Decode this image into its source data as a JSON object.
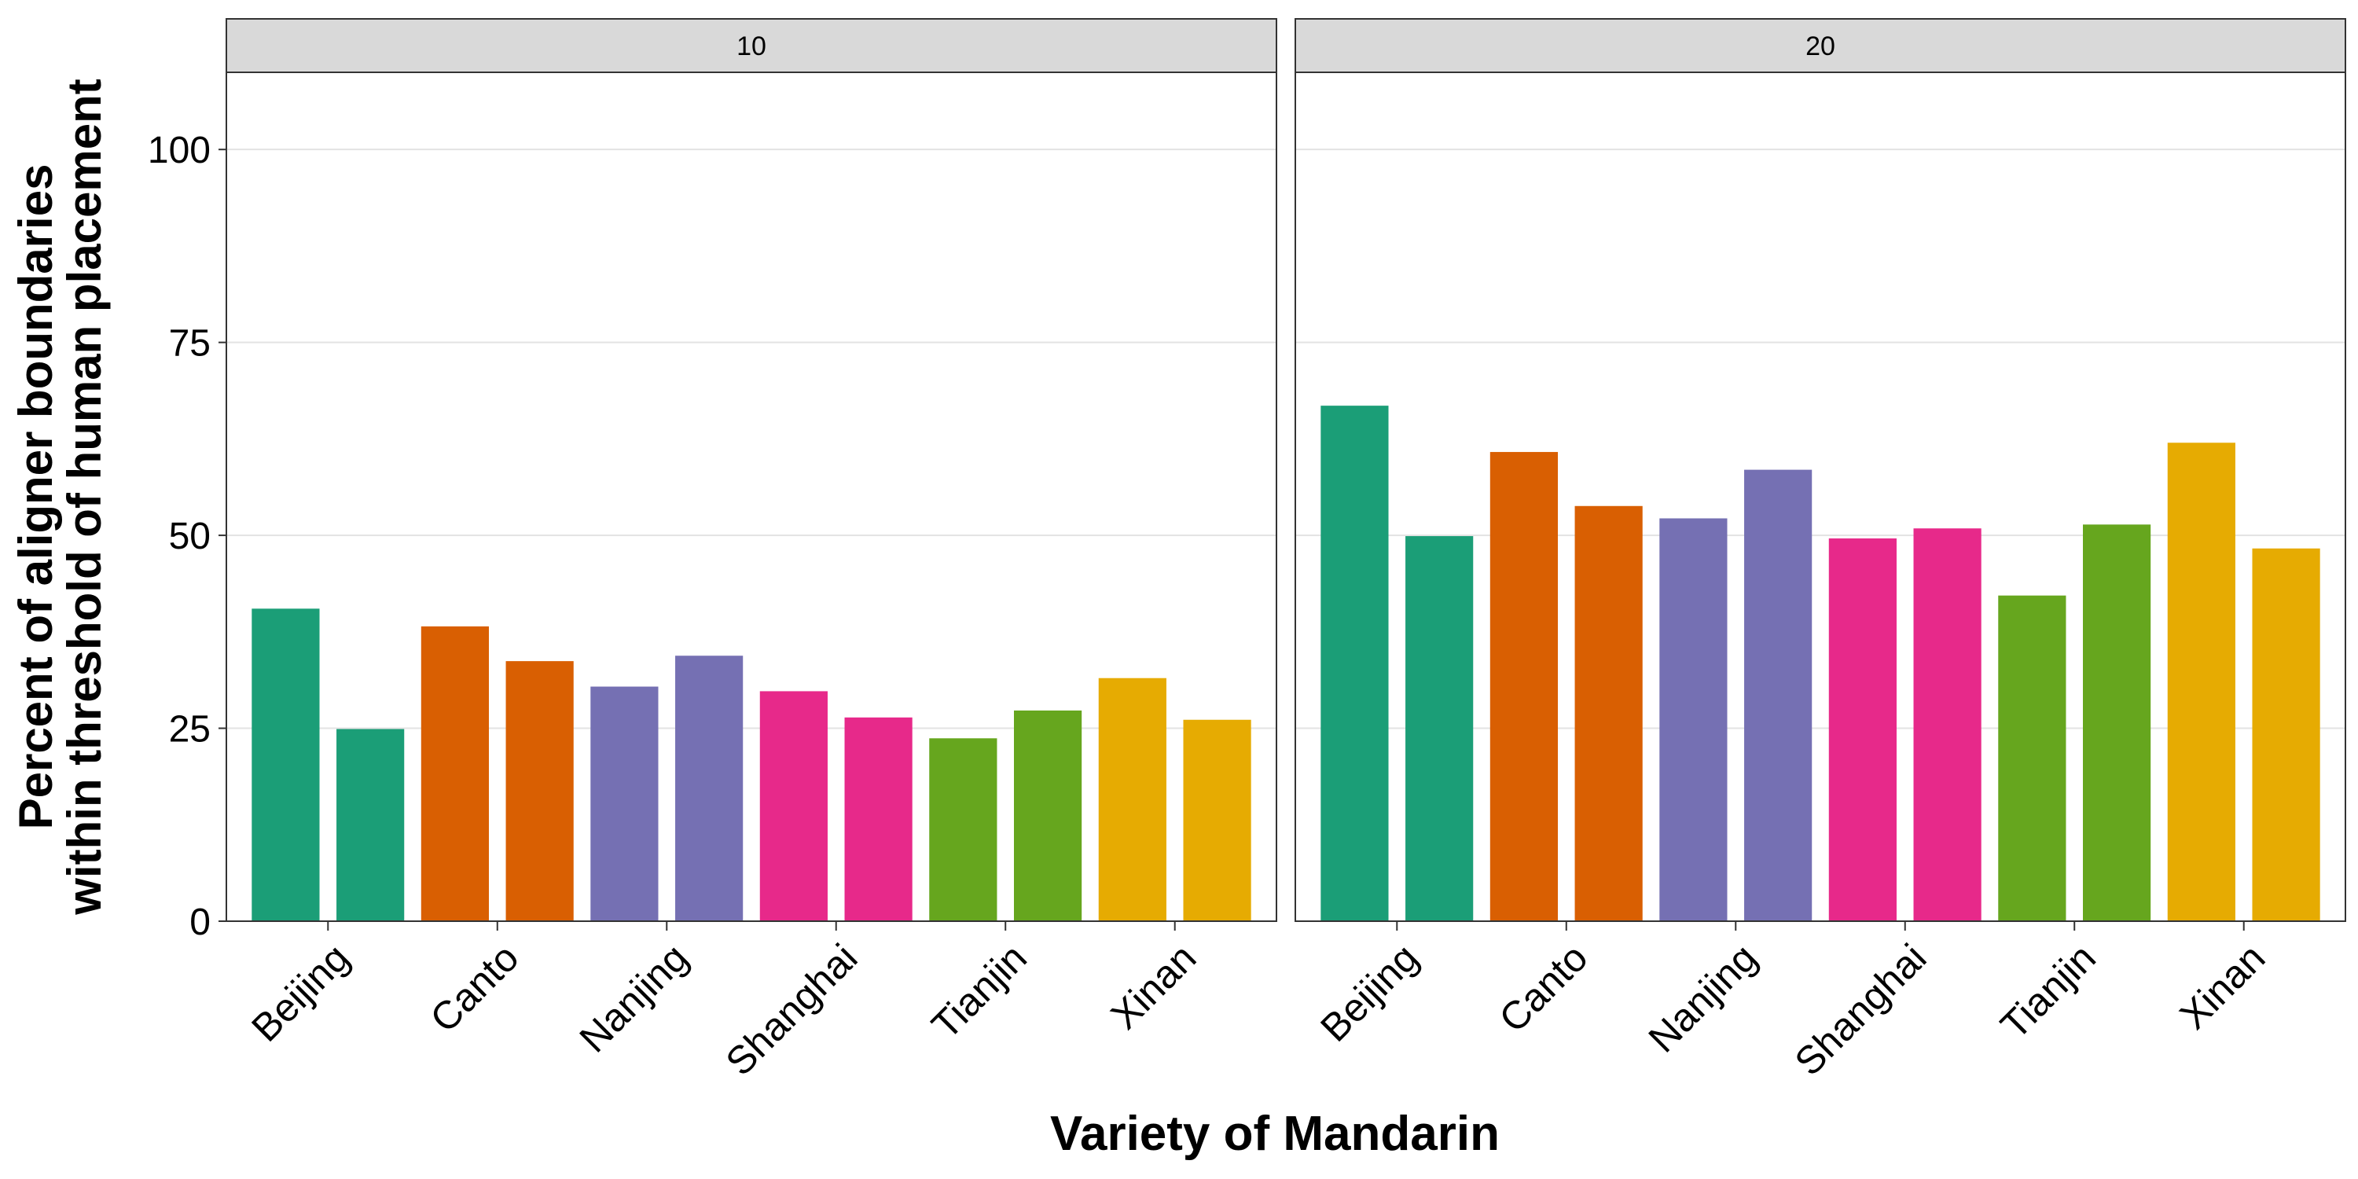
{
  "chart_data": {
    "type": "bar",
    "xlabel": "Variety of Mandarin",
    "ylabel_lines": [
      "Percent of aligner boundaries",
      "within threshold of human placement"
    ],
    "ylim": [
      0,
      110
    ],
    "yticks": [
      0,
      25,
      50,
      75,
      100
    ],
    "grid": true,
    "legend": "none",
    "categories": [
      "Beijing",
      "Canto",
      "Nanjing",
      "Shanghai",
      "Tianjin",
      "Xinan"
    ],
    "colors": {
      "Beijing": "#1b9e77",
      "Canto": "#d95f02",
      "Nanjing": "#7570b3",
      "Shanghai": "#e7298a",
      "Tianjin": "#66a61e",
      "Xinan": "#e6ab02"
    },
    "facets": [
      {
        "label": "10",
        "values": [
          [
            40.5,
            24.9
          ],
          [
            38.2,
            33.7
          ],
          [
            30.4,
            34.4
          ],
          [
            29.8,
            26.4
          ],
          [
            23.7,
            27.3
          ],
          [
            31.5,
            26.1
          ]
        ]
      },
      {
        "label": "20",
        "values": [
          [
            66.8,
            49.9
          ],
          [
            60.8,
            53.8
          ],
          [
            52.2,
            58.5
          ],
          [
            49.6,
            50.9
          ],
          [
            42.2,
            51.4
          ],
          [
            62.0,
            48.3
          ]
        ]
      }
    ]
  }
}
